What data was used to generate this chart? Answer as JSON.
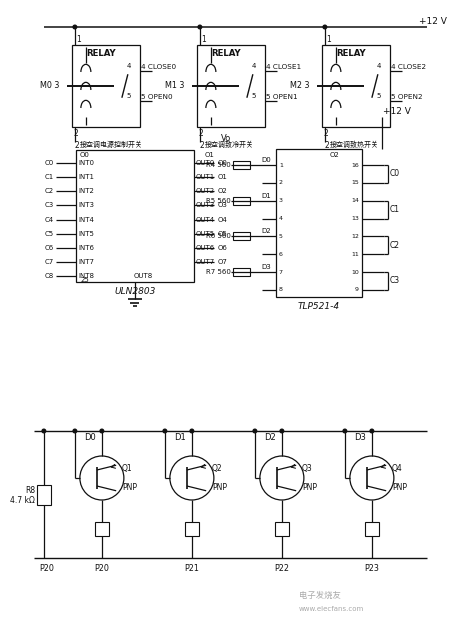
{
  "bg": "#ffffff",
  "lc": "#111111",
  "vcc_top": "+12 V",
  "vcc_tlp": "+12 V",
  "relay_m": [
    "M0 3",
    "M1 3",
    "M2 3"
  ],
  "relay_close": [
    "4 CLOSE0",
    "4 CLOSE1",
    "4 CLOSE2"
  ],
  "relay_open": [
    "5 OPEN0",
    "5 OPEN1",
    "5 OPEN2"
  ],
  "relay_bot_cn": [
    "接空调电源控制开关",
    "接空调致冷开关",
    "接空调致热开关"
  ],
  "relay_o": [
    "O0",
    "O1",
    "O2"
  ],
  "uln_in": [
    "C0",
    "C1",
    "C2",
    "C3",
    "C4",
    "C5",
    "C6",
    "C7",
    "C8"
  ],
  "uln_int": [
    "INT0",
    "INT1",
    "INT2",
    "INT3",
    "INT4",
    "INT5",
    "INT6",
    "INT7",
    "INT8"
  ],
  "uln_out": [
    "OUT0",
    "OUT1",
    "OUT2",
    "OUT3",
    "OUT4",
    "OUT5",
    "OUT6",
    "OUT7",
    "OUT8"
  ],
  "uln_sig": [
    "O0",
    "O1",
    "O2",
    "O3",
    "O4",
    "O5",
    "O6",
    "O7"
  ],
  "uln_name": "ULN2803",
  "uln_p25": "25",
  "tlp_r": [
    "R4 560",
    "R5 560",
    "R6 560",
    "R7 560"
  ],
  "tlp_d": [
    "D0",
    "D1",
    "D2",
    "D3"
  ],
  "tlp_lp": [
    "1",
    "2",
    "3",
    "4",
    "5",
    "6",
    "7",
    "8"
  ],
  "tlp_rp": [
    "16",
    "15",
    "14",
    "13",
    "12",
    "11",
    "10",
    "9"
  ],
  "tlp_c": [
    "C0",
    "C1",
    "C2",
    "C3"
  ],
  "tlp_name": "TLP521-4",
  "tlp_vo": "Vo",
  "q_name": [
    "Q1",
    "Q2",
    "Q3",
    "Q4"
  ],
  "pnp": "PNP",
  "d_bot": [
    "D0",
    "D1",
    "D2",
    "D3"
  ],
  "p_bot": [
    "P20",
    "P21",
    "P22",
    "P23"
  ],
  "r8_top": "R8",
  "r8_bot": "4.7 kΩ",
  "wm1": "电子发烧友",
  "wm2": "www.elecfans.com"
}
